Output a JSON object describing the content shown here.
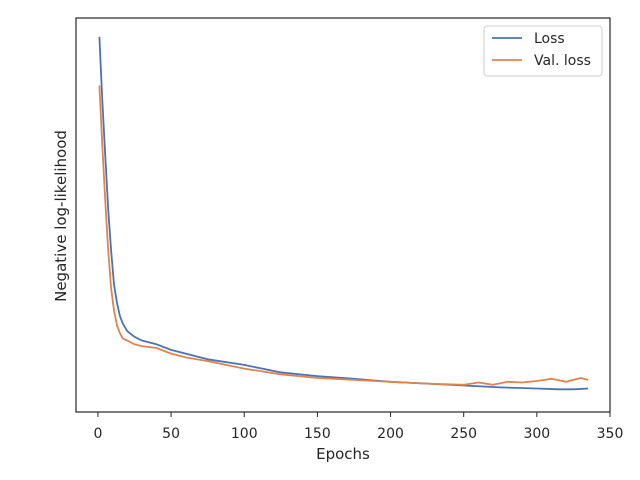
{
  "chart_data": {
    "type": "line",
    "title": "",
    "xlabel": "Epochs",
    "ylabel": "Negative log-likelihood",
    "xlim": [
      -15,
      350
    ],
    "ylim": [
      0,
      1
    ],
    "xticks": [
      0,
      50,
      100,
      150,
      200,
      250,
      300,
      350
    ],
    "y_tick_labels_shown": false,
    "grid": false,
    "legend_position": "top-right",
    "series": [
      {
        "name": "Loss",
        "color": "#4c72b0",
        "x": [
          1,
          3,
          5,
          7,
          9,
          11,
          13,
          15,
          17,
          20,
          25,
          30,
          40,
          50,
          60,
          75,
          100,
          125,
          150,
          175,
          200,
          225,
          250,
          275,
          300,
          315,
          325,
          335
        ],
        "y": [
          0.99,
          0.82,
          0.67,
          0.53,
          0.42,
          0.33,
          0.28,
          0.245,
          0.225,
          0.205,
          0.19,
          0.18,
          0.17,
          0.155,
          0.145,
          0.13,
          0.115,
          0.095,
          0.085,
          0.078,
          0.07,
          0.065,
          0.06,
          0.055,
          0.052,
          0.05,
          0.05,
          0.052
        ]
      },
      {
        "name": "Val. loss",
        "color": "#dd8452",
        "x": [
          1,
          3,
          5,
          7,
          9,
          11,
          13,
          15,
          17,
          20,
          25,
          30,
          40,
          50,
          60,
          75,
          100,
          125,
          150,
          175,
          200,
          225,
          250,
          260,
          270,
          280,
          290,
          300,
          310,
          320,
          330,
          335
        ],
        "y": [
          0.86,
          0.7,
          0.55,
          0.42,
          0.32,
          0.26,
          0.22,
          0.2,
          0.185,
          0.18,
          0.17,
          0.165,
          0.16,
          0.145,
          0.135,
          0.125,
          0.105,
          0.09,
          0.08,
          0.075,
          0.07,
          0.065,
          0.062,
          0.068,
          0.062,
          0.07,
          0.068,
          0.072,
          0.078,
          0.07,
          0.08,
          0.075
        ]
      }
    ]
  }
}
